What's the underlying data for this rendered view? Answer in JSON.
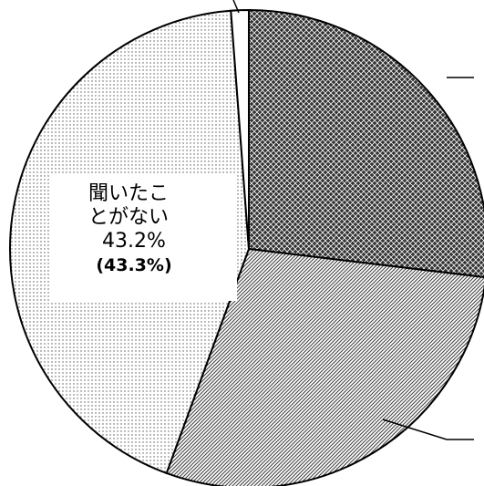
{
  "chart_data": {
    "type": "pie",
    "categories": [
      null,
      null,
      "聞いたことがない",
      null
    ],
    "values": [
      26.9,
      28.7,
      43.2,
      1.2
    ],
    "value_labels": [
      null,
      null,
      "43.2%",
      null
    ],
    "secondary_labels": [
      null,
      null,
      "(43.3%)",
      null
    ],
    "patterns": [
      "crosshatch",
      "diagonal",
      "dots",
      "none"
    ]
  }
}
